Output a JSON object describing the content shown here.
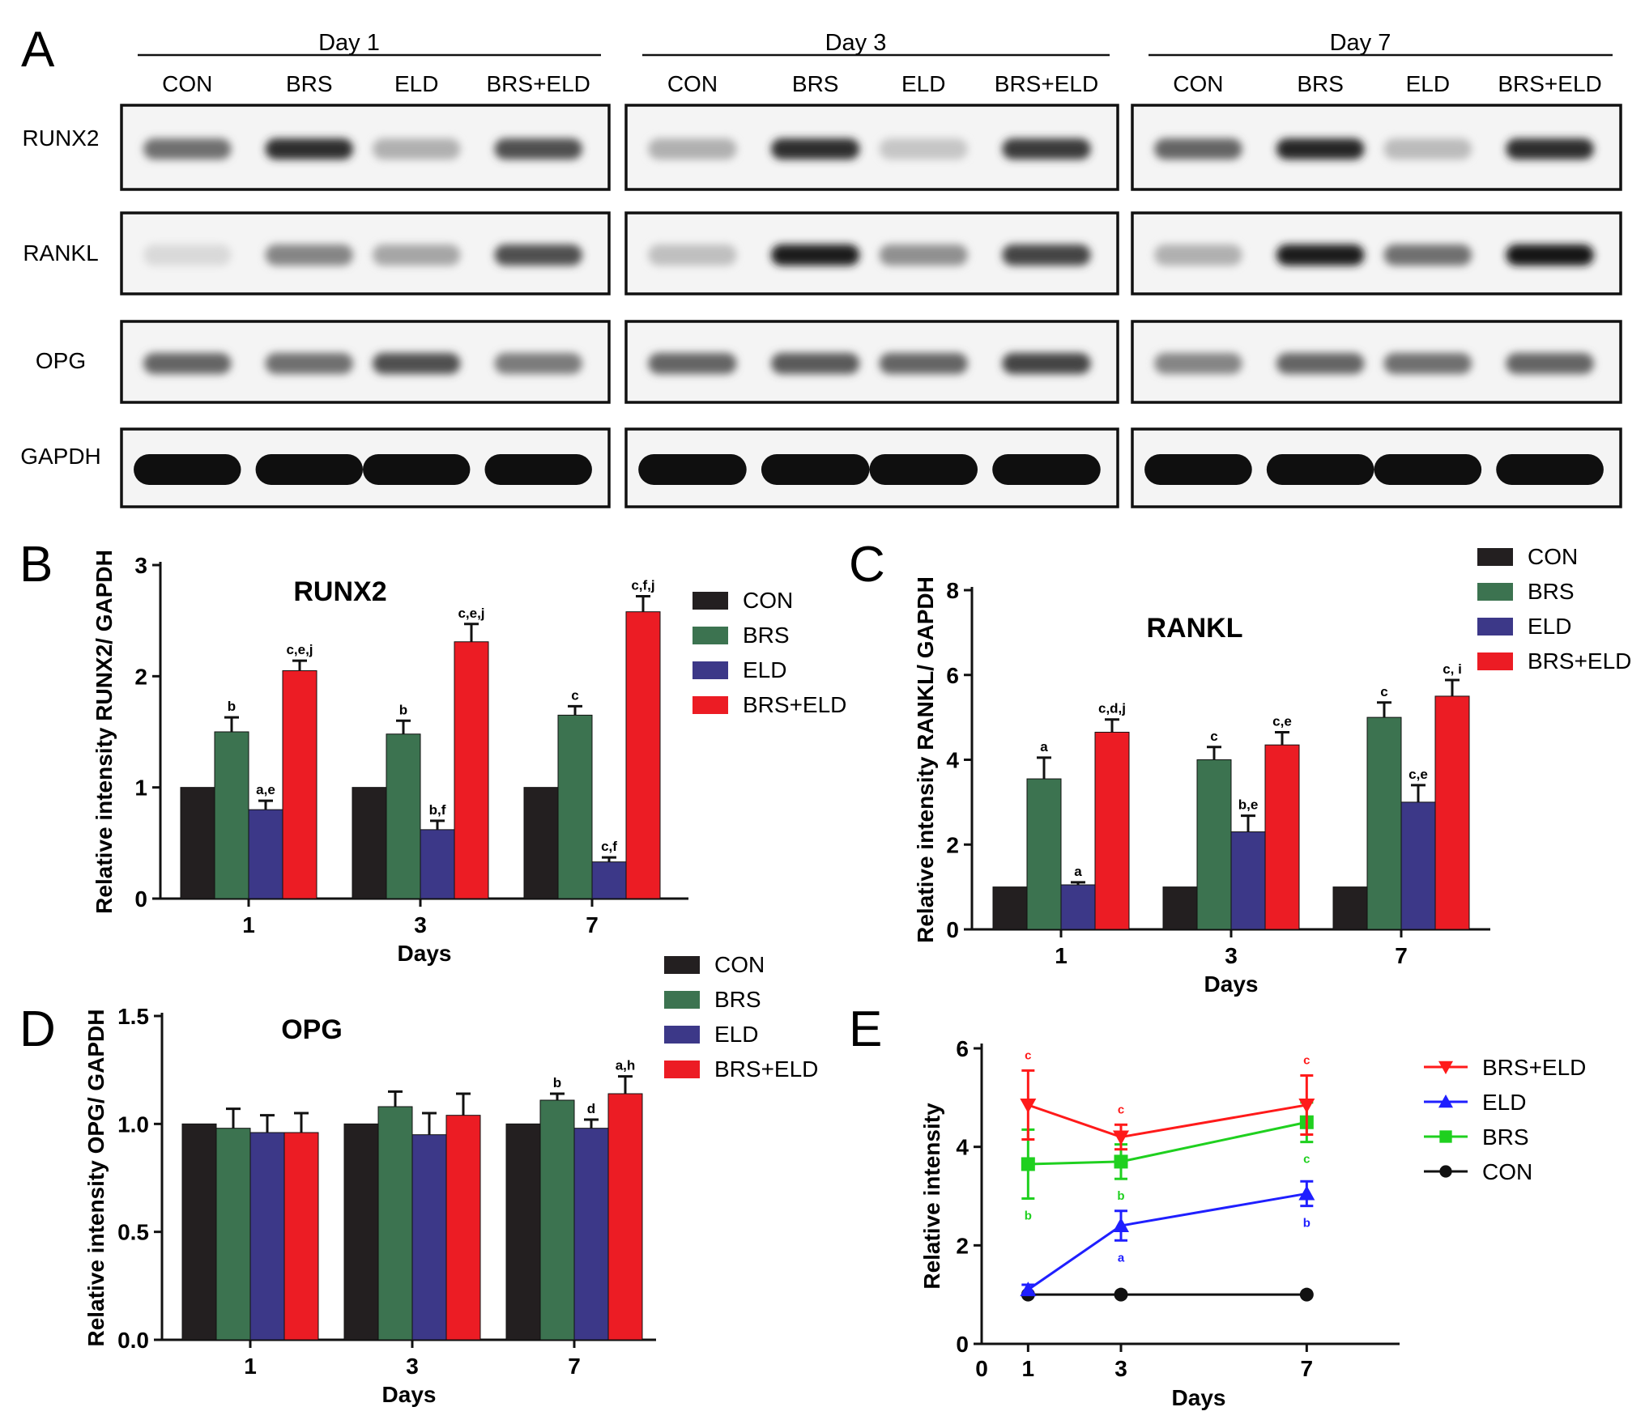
{
  "panels": {
    "a": "A",
    "b": "B",
    "c": "C",
    "d": "D",
    "e": "E"
  },
  "blot": {
    "days": [
      "Day 1",
      "Day 3",
      "Day 7"
    ],
    "lanes": [
      "CON",
      "BRS",
      "ELD",
      "BRS+ELD"
    ],
    "proteins": [
      "RUNX2",
      "RANKL",
      "OPG",
      "GAPDH"
    ],
    "intensity": {
      "RUNX2": [
        [
          0.55,
          0.85,
          0.25,
          0.7
        ],
        [
          0.25,
          0.85,
          0.15,
          0.8
        ],
        [
          0.6,
          0.9,
          0.2,
          0.85
        ]
      ],
      "RANKL": [
        [
          0.06,
          0.45,
          0.3,
          0.7
        ],
        [
          0.18,
          0.95,
          0.4,
          0.75
        ],
        [
          0.25,
          0.95,
          0.55,
          0.98
        ]
      ],
      "OPG": [
        [
          0.6,
          0.55,
          0.7,
          0.5
        ],
        [
          0.6,
          0.65,
          0.6,
          0.75
        ],
        [
          0.45,
          0.6,
          0.55,
          0.6
        ]
      ],
      "GAPDH": [
        [
          1.0,
          1.0,
          1.0,
          1.0
        ],
        [
          1.0,
          1.0,
          1.0,
          1.0
        ],
        [
          1.0,
          1.0,
          1.0,
          1.0
        ]
      ]
    }
  },
  "legend": {
    "items": [
      {
        "label": "CON",
        "color": "#231f20"
      },
      {
        "label": "BRS",
        "color": "#3c7350"
      },
      {
        "label": "ELD",
        "color": "#3c3888"
      },
      {
        "label": "BRS+ELD",
        "color": "#ec1c24"
      }
    ]
  },
  "chart_data": [
    {
      "panel": "B",
      "type": "bar",
      "title": "RUNX2",
      "xlabel": "Days",
      "ylabel": "Relative intensity  RUNX2/ GAPDH",
      "categories": [
        "1",
        "3",
        "7"
      ],
      "ylim": [
        0,
        3
      ],
      "yticks": [
        "0",
        "1",
        "2",
        "3"
      ],
      "series": [
        {
          "name": "CON",
          "values": [
            1.0,
            1.0,
            1.0
          ],
          "err": [
            0,
            0,
            0
          ],
          "labels": [
            "",
            "",
            ""
          ]
        },
        {
          "name": "BRS",
          "values": [
            1.5,
            1.48,
            1.65
          ],
          "err": [
            0.13,
            0.12,
            0.08
          ],
          "labels": [
            "b",
            "b",
            "c"
          ]
        },
        {
          "name": "ELD",
          "values": [
            0.8,
            0.62,
            0.33
          ],
          "err": [
            0.08,
            0.08,
            0.04
          ],
          "labels": [
            "a,e",
            "b,f",
            "c,f"
          ]
        },
        {
          "name": "BRS+ELD",
          "values": [
            2.05,
            2.31,
            2.58
          ],
          "err": [
            0.09,
            0.16,
            0.14
          ],
          "labels": [
            "c,e,j",
            "c,e,j",
            "c,f,j"
          ]
        }
      ]
    },
    {
      "panel": "C",
      "type": "bar",
      "title": "RANKL",
      "xlabel": "Days",
      "ylabel": "Relative intensity RANKL/ GAPDH",
      "categories": [
        "1",
        "3",
        "7"
      ],
      "ylim": [
        0,
        8
      ],
      "yticks": [
        "0",
        "2",
        "4",
        "6",
        "8"
      ],
      "series": [
        {
          "name": "CON",
          "values": [
            1.0,
            1.0,
            1.0
          ],
          "err": [
            0,
            0,
            0
          ],
          "labels": [
            "",
            "",
            ""
          ]
        },
        {
          "name": "BRS",
          "values": [
            3.55,
            4.0,
            5.0
          ],
          "err": [
            0.5,
            0.3,
            0.35
          ],
          "labels": [
            "a",
            "c",
            "c"
          ]
        },
        {
          "name": "ELD",
          "values": [
            1.05,
            2.3,
            3.0
          ],
          "err": [
            0.06,
            0.38,
            0.4
          ],
          "labels": [
            "a",
            "b,e",
            "c,e"
          ]
        },
        {
          "name": "BRS+ELD",
          "values": [
            4.65,
            4.35,
            5.5
          ],
          "err": [
            0.3,
            0.3,
            0.38
          ],
          "labels": [
            "c,d,j",
            "c,e",
            "c, i"
          ]
        }
      ]
    },
    {
      "panel": "D",
      "type": "bar",
      "title": "OPG",
      "xlabel": "Days",
      "ylabel": "Relative intensity OPG/ GAPDH",
      "categories": [
        "1",
        "3",
        "7"
      ],
      "ylim": [
        0,
        1.5
      ],
      "yticks": [
        "0.0",
        "0.5",
        "1.0",
        "1.5"
      ],
      "series": [
        {
          "name": "CON",
          "values": [
            1.0,
            1.0,
            1.0
          ],
          "err": [
            0,
            0,
            0
          ],
          "labels": [
            "",
            "",
            ""
          ]
        },
        {
          "name": "BRS",
          "values": [
            0.98,
            1.08,
            1.11
          ],
          "err": [
            0.09,
            0.07,
            0.03
          ],
          "labels": [
            "",
            "",
            "b"
          ]
        },
        {
          "name": "ELD",
          "values": [
            0.96,
            0.95,
            0.98
          ],
          "err": [
            0.08,
            0.1,
            0.04
          ],
          "labels": [
            "",
            "",
            "d"
          ]
        },
        {
          "name": "BRS+ELD",
          "values": [
            0.96,
            1.04,
            1.14
          ],
          "err": [
            0.09,
            0.1,
            0.08
          ],
          "labels": [
            "",
            "",
            "a,h"
          ]
        }
      ]
    },
    {
      "panel": "E",
      "type": "line",
      "xlabel": "Days",
      "ylabel": "Relative intensity",
      "x": [
        1,
        3,
        7
      ],
      "xlim": [
        0,
        9
      ],
      "ylim": [
        0,
        6
      ],
      "xticks": [
        "0",
        "1",
        "3",
        "7"
      ],
      "yticks": [
        "0",
        "2",
        "4",
        "6"
      ],
      "series": [
        {
          "name": "BRS+ELD",
          "color": "#ff1a1a",
          "marker": "triangle-down",
          "y": [
            4.85,
            4.2,
            4.85
          ],
          "err": [
            0.7,
            0.25,
            0.6
          ],
          "labels": [
            "c",
            "c",
            "c"
          ],
          "label_pos": "above"
        },
        {
          "name": "ELD",
          "color": "#1f1fff",
          "marker": "triangle-up",
          "y": [
            1.1,
            2.4,
            3.05
          ],
          "err": [
            0.1,
            0.3,
            0.25
          ],
          "labels": [
            "",
            "a",
            "b"
          ],
          "label_pos": "below"
        },
        {
          "name": "BRS",
          "color": "#1fd01f",
          "marker": "square",
          "y": [
            3.65,
            3.7,
            4.5
          ],
          "err": [
            0.7,
            0.35,
            0.4
          ],
          "labels": [
            "b",
            "b",
            "c"
          ],
          "label_pos": "below"
        },
        {
          "name": "CON",
          "color": "#111111",
          "marker": "circle",
          "y": [
            1.0,
            1.0,
            1.0
          ],
          "err": [
            0,
            0,
            0
          ],
          "labels": [
            "",
            "",
            ""
          ],
          "label_pos": "below"
        }
      ]
    }
  ]
}
